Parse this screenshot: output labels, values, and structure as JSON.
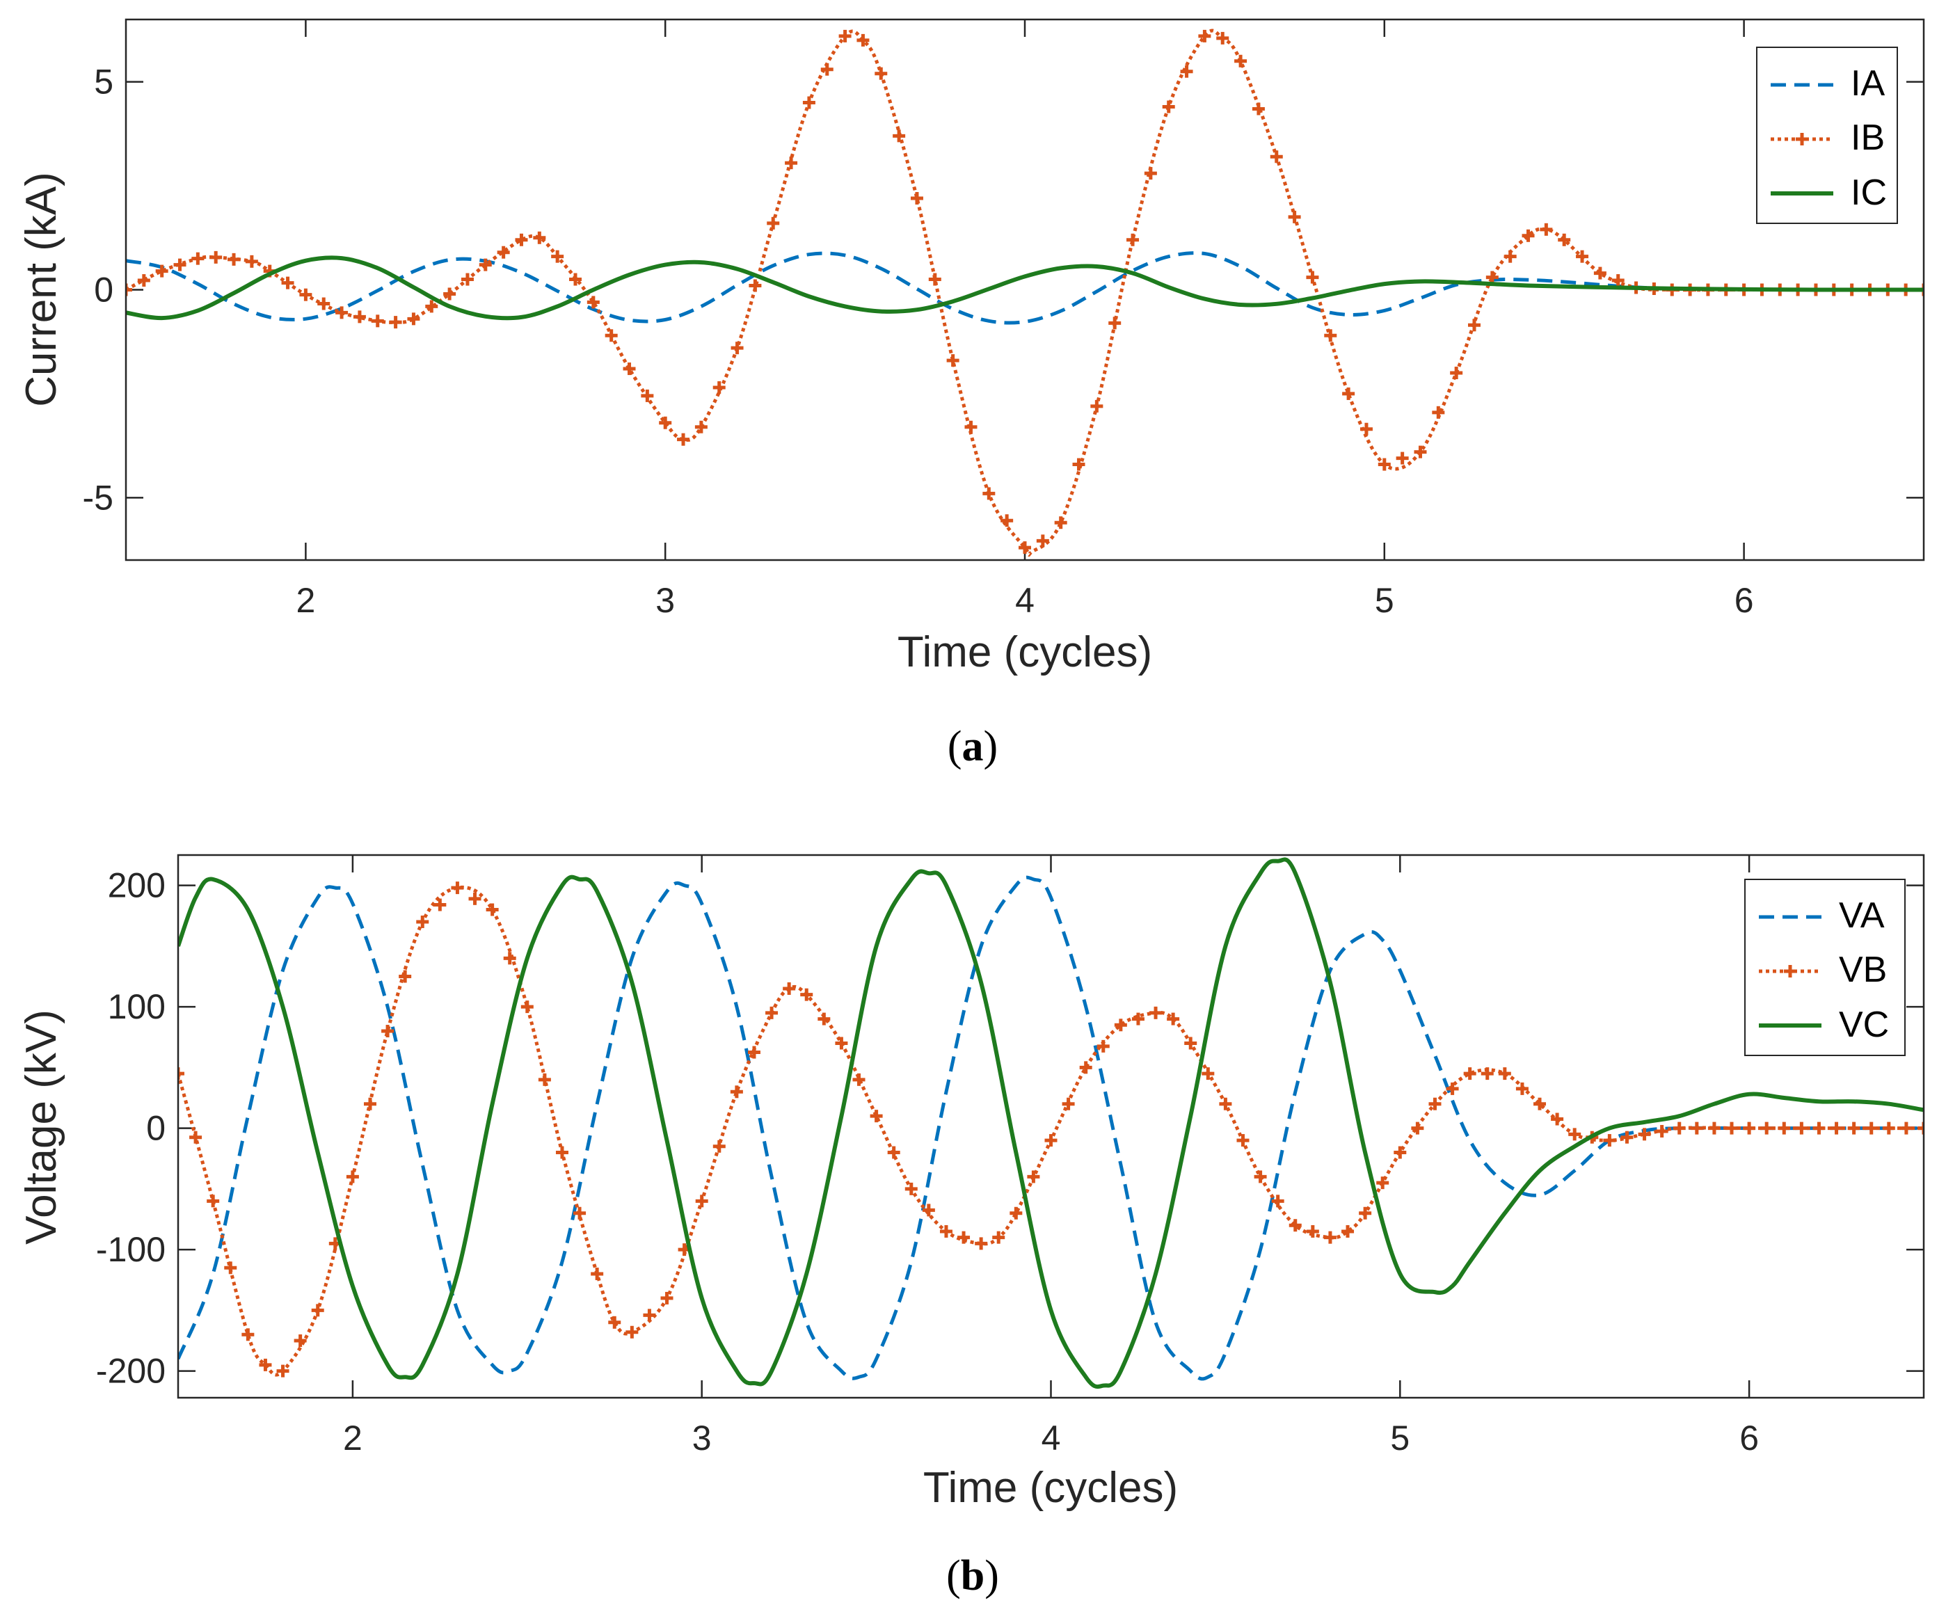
{
  "chart_data": [
    {
      "id": "a",
      "type": "line",
      "caption_letter": "a",
      "xlabel": "Time (cycles)",
      "ylabel": "Current (kA)",
      "xlim": [
        1.5,
        6.5
      ],
      "ylim": [
        -6.5,
        6.5
      ],
      "xticks": [
        2,
        3,
        4,
        5,
        6
      ],
      "yticks": [
        -5,
        0,
        5
      ],
      "xtick_labels": [
        "2",
        "3",
        "4",
        "5",
        "6"
      ],
      "ytick_labels": [
        "-5",
        "0",
        "5"
      ],
      "series": [
        {
          "name": "IA",
          "style": "dashed",
          "color": "#0072BD",
          "x": [
            1.5,
            1.6,
            1.7,
            1.8,
            1.9,
            2.0,
            2.1,
            2.2,
            2.3,
            2.4,
            2.5,
            2.6,
            2.7,
            2.8,
            2.9,
            3.0,
            3.1,
            3.2,
            3.3,
            3.4,
            3.5,
            3.6,
            3.7,
            3.8,
            3.9,
            4.0,
            4.1,
            4.2,
            4.3,
            4.4,
            4.5,
            4.6,
            4.7,
            4.8,
            4.9,
            5.0,
            5.1,
            5.2,
            5.3,
            5.4,
            5.5,
            5.6,
            5.7,
            5.8,
            6.0,
            6.2,
            6.5
          ],
          "y": [
            0.7,
            0.54,
            0.14,
            -0.34,
            -0.66,
            -0.7,
            -0.45,
            -0.02,
            0.44,
            0.72,
            0.69,
            0.41,
            -0.03,
            -0.47,
            -0.73,
            -0.72,
            -0.4,
            0.11,
            0.58,
            0.85,
            0.83,
            0.51,
            0.02,
            -0.46,
            -0.75,
            -0.77,
            -0.51,
            -0.04,
            0.46,
            0.8,
            0.87,
            0.56,
            0.04,
            -0.43,
            -0.6,
            -0.5,
            -0.2,
            0.12,
            0.24,
            0.24,
            0.19,
            0.12,
            0.06,
            0.03,
            0.01,
            0.0,
            0.0
          ]
        },
        {
          "name": "IB",
          "style": "dotted-marker",
          "color": "#D95319",
          "x": [
            1.5,
            1.6,
            1.7,
            1.75,
            1.85,
            1.9,
            2.0,
            2.1,
            2.2,
            2.25,
            2.3,
            2.4,
            2.5,
            2.6,
            2.65,
            2.7,
            2.8,
            2.9,
            3.0,
            3.05,
            3.1,
            3.2,
            3.3,
            3.4,
            3.5,
            3.55,
            3.6,
            3.7,
            3.8,
            3.9,
            4.0,
            4.02,
            4.1,
            4.2,
            4.3,
            4.4,
            4.5,
            4.55,
            4.6,
            4.7,
            4.8,
            4.9,
            5.0,
            5.1,
            5.2,
            5.3,
            5.4,
            5.45,
            5.5,
            5.6,
            5.7,
            5.8,
            6.0,
            6.2,
            6.5
          ],
          "y": [
            0.0,
            0.45,
            0.75,
            0.78,
            0.68,
            0.45,
            -0.12,
            -0.55,
            -0.75,
            -0.78,
            -0.7,
            -0.1,
            0.6,
            1.2,
            1.25,
            0.8,
            -0.3,
            -1.9,
            -3.2,
            -3.6,
            -3.3,
            -1.4,
            1.6,
            4.5,
            6.1,
            6.0,
            5.2,
            2.2,
            -1.7,
            -4.9,
            -6.2,
            -6.3,
            -5.6,
            -2.8,
            1.2,
            4.4,
            6.1,
            6.05,
            5.5,
            3.2,
            0.3,
            -2.5,
            -4.2,
            -3.9,
            -2.0,
            0.3,
            1.3,
            1.45,
            1.2,
            0.4,
            0.05,
            0.0,
            0.0,
            0.0,
            0.0
          ]
        },
        {
          "name": "IC",
          "style": "solid",
          "color": "#1E7B1E",
          "x": [
            1.5,
            1.6,
            1.7,
            1.8,
            1.9,
            2.0,
            2.1,
            2.2,
            2.3,
            2.4,
            2.5,
            2.6,
            2.7,
            2.8,
            2.9,
            3.0,
            3.1,
            3.2,
            3.3,
            3.4,
            3.5,
            3.6,
            3.7,
            3.8,
            3.9,
            4.0,
            4.1,
            4.2,
            4.3,
            4.4,
            4.5,
            4.6,
            4.7,
            4.8,
            4.9,
            5.0,
            5.1,
            5.2,
            5.3,
            5.4,
            5.6,
            5.8,
            6.0,
            6.2,
            6.5
          ],
          "y": [
            -0.55,
            -0.68,
            -0.5,
            -0.08,
            0.38,
            0.7,
            0.76,
            0.52,
            0.06,
            -0.4,
            -0.64,
            -0.66,
            -0.4,
            0.0,
            0.36,
            0.6,
            0.66,
            0.5,
            0.18,
            -0.16,
            -0.4,
            -0.52,
            -0.48,
            -0.28,
            0.02,
            0.32,
            0.52,
            0.56,
            0.4,
            0.06,
            -0.22,
            -0.36,
            -0.34,
            -0.2,
            -0.02,
            0.14,
            0.2,
            0.18,
            0.14,
            0.1,
            0.06,
            0.03,
            0.01,
            0.0,
            0.0
          ]
        }
      ]
    },
    {
      "id": "b",
      "type": "line",
      "caption_letter": "b",
      "xlabel": "Time (cycles)",
      "ylabel": "Voltage (kV)",
      "xlim": [
        1.5,
        6.5
      ],
      "ylim": [
        -222,
        225
      ],
      "xticks": [
        2,
        3,
        4,
        5,
        6
      ],
      "yticks": [
        -200,
        -100,
        0,
        100,
        200
      ],
      "xtick_labels": [
        "2",
        "3",
        "4",
        "5",
        "6"
      ],
      "ytick_labels": [
        "-200",
        "-100",
        "0",
        "100",
        "200"
      ],
      "series": [
        {
          "name": "VA",
          "style": "dashed",
          "color": "#0072BD",
          "x": [
            1.5,
            1.6,
            1.7,
            1.8,
            1.9,
            1.95,
            2.0,
            2.1,
            2.2,
            2.3,
            2.4,
            2.45,
            2.5,
            2.6,
            2.7,
            2.8,
            2.9,
            2.95,
            3.0,
            3.1,
            3.2,
            3.3,
            3.4,
            3.45,
            3.5,
            3.6,
            3.7,
            3.8,
            3.9,
            3.95,
            4.0,
            4.1,
            4.2,
            4.3,
            4.4,
            4.45,
            4.5,
            4.6,
            4.7,
            4.8,
            4.9,
            4.95,
            5.0,
            5.1,
            5.2,
            5.3,
            5.4,
            5.5,
            5.6,
            5.7,
            5.8,
            6.0,
            6.2,
            6.5
          ],
          "y": [
            -190,
            -120,
            10,
            130,
            190,
            198,
            185,
            100,
            -30,
            -150,
            -195,
            -200,
            -185,
            -110,
            20,
            140,
            195,
            200,
            185,
            100,
            -40,
            -160,
            -200,
            -205,
            -190,
            -110,
            30,
            150,
            200,
            205,
            190,
            100,
            -30,
            -160,
            -200,
            -205,
            -185,
            -100,
            30,
            130,
            160,
            155,
            130,
            60,
            -10,
            -45,
            -55,
            -35,
            -10,
            -2,
            0,
            0,
            0,
            0
          ]
        },
        {
          "name": "VB",
          "style": "dotted-marker",
          "color": "#D95319",
          "x": [
            1.5,
            1.6,
            1.7,
            1.75,
            1.8,
            1.9,
            2.0,
            2.1,
            2.2,
            2.3,
            2.4,
            2.5,
            2.6,
            2.7,
            2.75,
            2.8,
            2.9,
            3.0,
            3.1,
            3.2,
            3.25,
            3.3,
            3.4,
            3.5,
            3.6,
            3.7,
            3.8,
            3.85,
            3.9,
            4.0,
            4.1,
            4.2,
            4.3,
            4.35,
            4.4,
            4.5,
            4.6,
            4.7,
            4.8,
            4.85,
            4.9,
            5.0,
            5.1,
            5.2,
            5.3,
            5.4,
            5.5,
            5.6,
            5.7,
            5.8,
            6.0,
            6.2,
            6.5
          ],
          "y": [
            45,
            -60,
            -170,
            -195,
            -200,
            -150,
            -40,
            80,
            170,
            198,
            180,
            100,
            -20,
            -120,
            -160,
            -168,
            -140,
            -60,
            30,
            95,
            115,
            110,
            70,
            10,
            -50,
            -85,
            -95,
            -90,
            -70,
            -10,
            50,
            85,
            95,
            90,
            70,
            20,
            -40,
            -80,
            -90,
            -85,
            -70,
            -20,
            20,
            45,
            45,
            20,
            -5,
            -10,
            -5,
            0,
            0,
            0,
            0
          ]
        },
        {
          "name": "VC",
          "style": "solid",
          "color": "#1E7B1E",
          "x": [
            1.5,
            1.55,
            1.6,
            1.7,
            1.8,
            1.9,
            2.0,
            2.1,
            2.15,
            2.2,
            2.3,
            2.4,
            2.5,
            2.6,
            2.65,
            2.7,
            2.8,
            2.9,
            3.0,
            3.1,
            3.15,
            3.2,
            3.3,
            3.4,
            3.5,
            3.6,
            3.65,
            3.7,
            3.8,
            3.9,
            4.0,
            4.1,
            4.15,
            4.2,
            4.3,
            4.4,
            4.5,
            4.6,
            4.65,
            4.7,
            4.8,
            4.9,
            5.0,
            5.1,
            5.15,
            5.2,
            5.3,
            5.4,
            5.5,
            5.6,
            5.7,
            5.8,
            5.9,
            6.0,
            6.1,
            6.2,
            6.3,
            6.4,
            6.5
          ],
          "y": [
            150,
            190,
            205,
            180,
            100,
            -20,
            -130,
            -195,
            -205,
            -195,
            -120,
            20,
            140,
            200,
            205,
            195,
            120,
            -10,
            -140,
            -200,
            -210,
            -200,
            -120,
            10,
            150,
            205,
            210,
            200,
            120,
            -20,
            -150,
            -205,
            -212,
            -200,
            -120,
            10,
            150,
            210,
            220,
            210,
            120,
            -20,
            -120,
            -135,
            -130,
            -110,
            -70,
            -35,
            -15,
            0,
            5,
            10,
            20,
            28,
            25,
            22,
            22,
            20,
            15
          ]
        }
      ]
    }
  ]
}
